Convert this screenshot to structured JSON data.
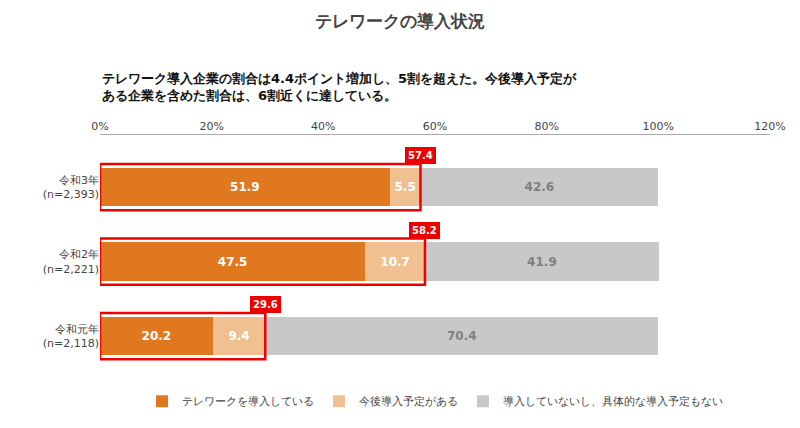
{
  "chart_data": {
    "type": "bar",
    "orientation": "horizontal",
    "stacked": true,
    "title": "テレワークの導入状況",
    "subtitle": "テレワーク導入企業の割合は4.4ポイント増加し、5割を超えた。今後導入予定が\nある企業を含めた割合は、6割近くに達している。",
    "categories": [
      "令和3年\n(n=2,393)",
      "令和2年\n(n=2,221)",
      "令和元年\n(n=2,118)"
    ],
    "series": [
      {
        "name": "テレワークを導入している",
        "color": "#E07820",
        "values": [
          51.9,
          47.5,
          20.2
        ]
      },
      {
        "name": "今後導入予定がある",
        "color": "#F0C090",
        "values": [
          5.5,
          10.7,
          9.4
        ]
      },
      {
        "name": "導入していないし、具体的な導入予定もない",
        "color": "#C8C8C8",
        "values": [
          42.6,
          41.9,
          70.4
        ]
      }
    ],
    "totals": {
      "values": [
        57.4,
        58.2,
        29.6
      ],
      "color": "#EE0000"
    },
    "xlim": [
      0,
      120
    ],
    "xticks": [
      {
        "value": 0,
        "label": "0%"
      },
      {
        "value": 20,
        "label": "20%"
      },
      {
        "value": 40,
        "label": "40%"
      },
      {
        "value": 60,
        "label": "60%"
      },
      {
        "value": 80,
        "label": "80%"
      },
      {
        "value": 100,
        "label": "100%"
      },
      {
        "value": 120,
        "label": "120%"
      }
    ],
    "grid": true,
    "data_labels": true,
    "legend": "bottom"
  }
}
